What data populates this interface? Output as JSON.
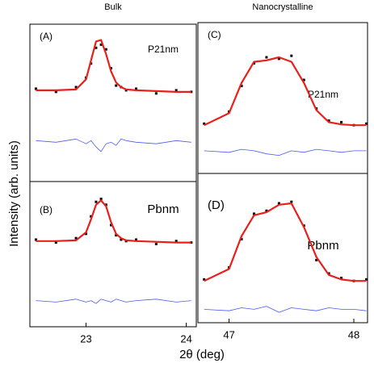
{
  "figure": {
    "y_label": "Intensity (arb. units)",
    "x_label": "2θ (deg)"
  },
  "chart_data": [
    {
      "type": "line",
      "title": "Bulk",
      "panel_label": "(A)",
      "annotation": "P21nm",
      "x": [
        22.5,
        22.7,
        22.9,
        23.0,
        23.05,
        23.1,
        23.15,
        23.2,
        23.25,
        23.3,
        23.35,
        23.4,
        23.5,
        23.7,
        23.9,
        24.05
      ],
      "xlim": [
        22.44,
        24.1
      ],
      "ylim": [
        0,
        100
      ],
      "series": [
        {
          "style": "points",
          "color": "#000000",
          "values": [
            59,
            57,
            60,
            66,
            75,
            85,
            87,
            84,
            72,
            61,
            60,
            58,
            59,
            56,
            58,
            57
          ]
        },
        {
          "style": "line",
          "color": "#e8201c",
          "values": [
            58,
            58,
            58.5,
            65,
            77,
            89,
            90,
            81,
            70,
            63,
            60,
            58.5,
            58,
            57.5,
            57,
            57
          ]
        },
        {
          "style": "line",
          "color": "#4a5cf0",
          "values": [
            26,
            25,
            27,
            24,
            26,
            22,
            19,
            24,
            25,
            23,
            27,
            26,
            25,
            24,
            26,
            25
          ]
        }
      ]
    },
    {
      "type": "line",
      "panel_label": "(B)",
      "annotation": "Pbnm",
      "x": [
        22.5,
        22.7,
        22.9,
        23.0,
        23.05,
        23.1,
        23.15,
        23.2,
        23.25,
        23.3,
        23.35,
        23.4,
        23.5,
        23.7,
        23.9,
        24.05
      ],
      "xlim": [
        22.44,
        24.1
      ],
      "ylim": [
        0,
        100
      ],
      "xticks": [
        23,
        24
      ],
      "series": [
        {
          "style": "points",
          "color": "#000000",
          "values": [
            60,
            58,
            61,
            64,
            76,
            86,
            88,
            84,
            70,
            63,
            60,
            59,
            60,
            57,
            59,
            58
          ]
        },
        {
          "style": "line",
          "color": "#e8201c",
          "values": [
            59,
            59,
            59.5,
            65,
            74,
            84,
            87,
            83,
            72,
            64,
            61,
            59.5,
            59,
            58.5,
            58,
            58
          ]
        },
        {
          "style": "line",
          "color": "#4a5cf0",
          "values": [
            18,
            17,
            19,
            17,
            18,
            16,
            19,
            18,
            17,
            19,
            18,
            17,
            18,
            19,
            17,
            18
          ]
        }
      ]
    },
    {
      "type": "line",
      "title": "Nanocrystalline",
      "panel_label": "(C)",
      "annotation": "P21nm",
      "x": [
        46.8,
        47.0,
        47.1,
        47.2,
        47.3,
        47.4,
        47.5,
        47.6,
        47.7,
        47.8,
        47.9,
        48.0,
        48.1
      ],
      "xlim": [
        46.75,
        48.11
      ],
      "ylim": [
        0,
        100
      ],
      "series": [
        {
          "style": "points",
          "color": "#000000",
          "values": [
            33,
            41,
            58,
            73,
            77,
            76,
            78,
            62,
            43,
            35,
            34,
            32,
            33
          ]
        },
        {
          "style": "line",
          "color": "#e8201c",
          "values": [
            32,
            40,
            60,
            74,
            75,
            77,
            74,
            60,
            42,
            34,
            32.5,
            32,
            32
          ]
        },
        {
          "style": "line",
          "color": "#4a5cf0",
          "values": [
            15,
            14,
            16,
            15,
            13,
            12,
            15,
            14,
            16,
            15,
            14,
            15,
            15
          ]
        }
      ]
    },
    {
      "type": "line",
      "panel_label": "(D)",
      "annotation": "Pbnm",
      "x": [
        46.8,
        47.0,
        47.1,
        47.2,
        47.3,
        47.4,
        47.5,
        47.6,
        47.7,
        47.8,
        47.9,
        48.0,
        48.1
      ],
      "xlim": [
        46.75,
        48.11
      ],
      "ylim": [
        0,
        100
      ],
      "xticks": [
        47,
        48
      ],
      "series": [
        {
          "style": "points",
          "color": "#000000",
          "values": [
            29,
            37,
            56,
            73,
            75,
            80,
            81,
            65,
            42,
            33,
            30,
            28,
            29
          ]
        },
        {
          "style": "line",
          "color": "#e8201c",
          "values": [
            28,
            36,
            58,
            72,
            74,
            79,
            80,
            64,
            44,
            32,
            29,
            28,
            28
          ]
        },
        {
          "style": "line",
          "color": "#4a5cf0",
          "values": [
            9,
            8,
            10,
            9,
            11,
            7,
            10,
            9,
            8,
            10,
            9,
            9,
            8
          ]
        }
      ]
    }
  ]
}
